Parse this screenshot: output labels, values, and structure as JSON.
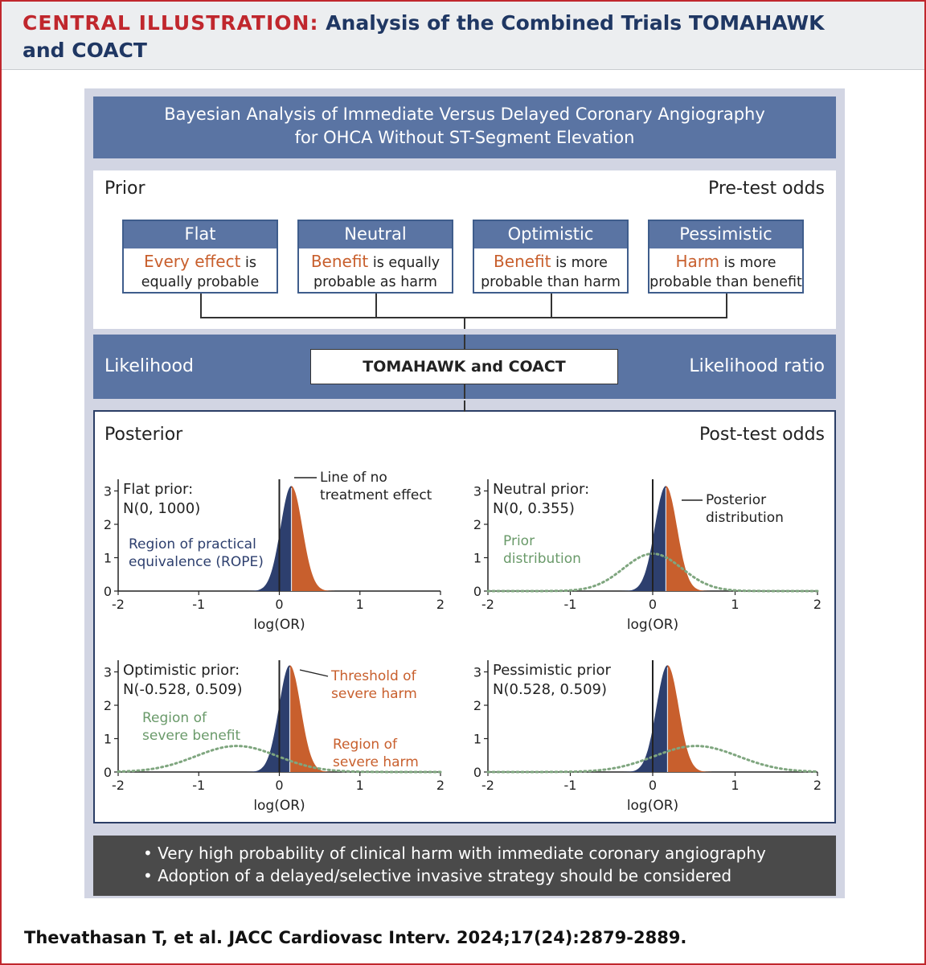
{
  "header": {
    "label": "CENTRAL ILLUSTRATION:",
    "title_line1": "Analysis of the Combined Trials TOMAHAWK",
    "title_line2": "and COACT"
  },
  "banner": {
    "line1": "Bayesian Analysis of Immediate Versus Delayed Coronary Angiography",
    "line2": "for OHCA Without ST-Segment Elevation"
  },
  "prior_section": {
    "left_label": "Prior",
    "right_label": "Pre-test odds",
    "cards": [
      {
        "title": "Flat",
        "highlight": "Every effect",
        "rest1": " is",
        "line2": "equally probable"
      },
      {
        "title": "Neutral",
        "highlight": "Benefit",
        "rest1": " is equally",
        "line2": "probable as harm"
      },
      {
        "title": "Optimistic",
        "highlight": "Benefit",
        "rest1": " is more",
        "line2": "probable than harm"
      },
      {
        "title": "Pessimistic",
        "highlight": "Harm",
        "rest1": " is more",
        "line2": "probable than benefit"
      }
    ]
  },
  "likelihood_section": {
    "left_label": "Likelihood",
    "center_box": "TOMAHAWK and COACT",
    "right_label": "Likelihood ratio"
  },
  "posterior_section": {
    "left_label": "Posterior",
    "right_label": "Post-test odds"
  },
  "chart_data": [
    {
      "type": "area",
      "title_line1": "Flat prior:",
      "title_line2": "N(0, 1000)",
      "xlabel": "log(OR)",
      "xlim": [
        -2,
        2
      ],
      "ylim": [
        0,
        3
      ],
      "xticks": [
        "-2",
        "-1",
        "0",
        "1",
        "2"
      ],
      "yticks": [
        "0",
        "1",
        "2",
        "3"
      ],
      "posterior": {
        "mean": 0.15,
        "peak": 3.15
      },
      "prior": null,
      "annotations": [
        {
          "text_line1": "Line of no",
          "text_line2": "treatment effect",
          "color": "#222222"
        },
        {
          "text_line1": "Region of practical",
          "text_line2": "equivalence (ROPE)",
          "color": "#2d3f6e"
        }
      ]
    },
    {
      "type": "area",
      "title_line1": "Neutral prior:",
      "title_line2": "N(0, 0.355)",
      "xlabel": "log(OR)",
      "xlim": [
        -2,
        2
      ],
      "ylim": [
        0,
        3
      ],
      "xticks": [
        "-2",
        "-1",
        "0",
        "1",
        "2"
      ],
      "yticks": [
        "0",
        "1",
        "2",
        "3"
      ],
      "posterior": {
        "mean": 0.16,
        "peak": 3.15
      },
      "prior": {
        "mean": 0,
        "sd": 0.355,
        "peak": 1.12
      },
      "annotations": [
        {
          "text_line1": "Posterior",
          "text_line2": "distribution",
          "color": "#222222"
        },
        {
          "text_line1": "Prior",
          "text_line2": "distribution",
          "color": "#6a9a6a"
        }
      ]
    },
    {
      "type": "area",
      "title_line1": "Optimistic prior:",
      "title_line2": "N(-0.528, 0.509)",
      "xlabel": "log(OR)",
      "xlim": [
        -2,
        2
      ],
      "ylim": [
        0,
        3
      ],
      "xticks": [
        "-2",
        "-1",
        "0",
        "1",
        "2"
      ],
      "yticks": [
        "0",
        "1",
        "2",
        "3"
      ],
      "posterior": {
        "mean": 0.13,
        "peak": 3.2
      },
      "prior": {
        "mean": -0.528,
        "sd": 0.509,
        "peak": 0.78
      },
      "annotations": [
        {
          "text_line1": "Threshold of",
          "text_line2": "severe harm",
          "color": "#c85f2d"
        },
        {
          "text_line1": "Region of",
          "text_line2": "severe benefit",
          "color": "#6a9a6a"
        },
        {
          "text_line1": "Region of",
          "text_line2": "severe harm",
          "color": "#c85f2d"
        }
      ]
    },
    {
      "type": "area",
      "title_line1": "Pessimistic prior",
      "title_line2": "N(0.528, 0.509)",
      "xlabel": "log(OR)",
      "xlim": [
        -2,
        2
      ],
      "ylim": [
        0,
        3
      ],
      "xticks": [
        "-2",
        "-1",
        "0",
        "1",
        "2"
      ],
      "yticks": [
        "0",
        "1",
        "2",
        "3"
      ],
      "posterior": {
        "mean": 0.18,
        "peak": 3.2
      },
      "prior": {
        "mean": 0.528,
        "sd": 0.509,
        "peak": 0.78
      },
      "annotations": []
    }
  ],
  "conclusions": {
    "line1": "• Very high probability of clinical harm with immediate coronary angiography",
    "line2": "• Adoption of a delayed/selective invasive strategy should be considered"
  },
  "citation": "Thevathasan T, et al. JACC Cardiovasc Interv. 2024;17(24):2879-2889.",
  "colors": {
    "accent_red": "#c0272d",
    "navy": "#1f3763",
    "bar_blue": "#5a74a3",
    "benefit_fill": "#2d3f6e",
    "harm_fill": "#c85f2d",
    "prior_green": "#7fa67f"
  }
}
